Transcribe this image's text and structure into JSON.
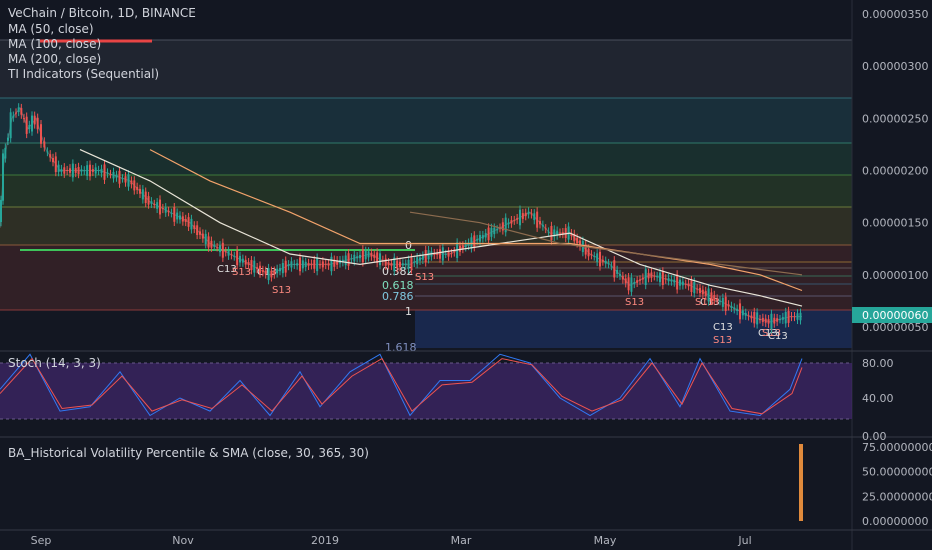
{
  "chart_title": "VeChain / Bitcoin, 1D, BINANCE",
  "indicators": [
    "MA (50, close)",
    "MA (100, close)",
    "MA (200, close)",
    "TI Indicators (Sequential)"
  ],
  "stoch_label": "Stoch (14, 3, 3)",
  "hv_label": "BA_Historical Volatility Percentile & SMA (close, 30, 365, 30)",
  "last_price_label": "0.00000060",
  "colors": {
    "background": "#131722",
    "up": "#26a69a",
    "down": "#ef5350",
    "ma50": "#e9e5d8",
    "ma100": "#f2a36b",
    "ma200": "#8d6c4f",
    "price_badge": "#26a69a",
    "stoch_k": "#3179f5",
    "stoch_d": "#ef5350",
    "stoch_band": "#4a2a7a",
    "hv_bar": "#e08a3c"
  },
  "fib_labels": [
    "0",
    "0.382",
    "0.618",
    "0.786",
    "1",
    "1.618"
  ],
  "sequential_labels": [
    "C13",
    "S13",
    "C13",
    "S13",
    "S13",
    "S13",
    "C13",
    "S13",
    "C13",
    "S13",
    "C13",
    "S13",
    "C13"
  ],
  "chart_data": [
    {
      "type": "candlestick",
      "title": "VeChain / Bitcoin, 1D, BINANCE",
      "x_ticks": [
        "Sep",
        "Nov",
        "2019",
        "Mar",
        "May",
        "Jul"
      ],
      "y_ticks": [
        "0.00000350",
        "0.00000300",
        "0.00000250",
        "0.00000200",
        "0.00000150",
        "0.00000100",
        "0.00000050"
      ],
      "ylim": [
        3e-07,
        3.6e-06
      ],
      "last_value": 6e-07,
      "price_path": [
        {
          "x": 0,
          "y": 1.45e-06
        },
        {
          "x": 4,
          "y": 2.1e-06
        },
        {
          "x": 12,
          "y": 2.5e-06
        },
        {
          "x": 20,
          "y": 2.6e-06
        },
        {
          "x": 28,
          "y": 2.4e-06
        },
        {
          "x": 36,
          "y": 2.5e-06
        },
        {
          "x": 46,
          "y": 2.2e-06
        },
        {
          "x": 60,
          "y": 2e-06
        },
        {
          "x": 80,
          "y": 2e-06
        },
        {
          "x": 100,
          "y": 2e-06
        },
        {
          "x": 130,
          "y": 1.9e-06
        },
        {
          "x": 150,
          "y": 1.7e-06
        },
        {
          "x": 170,
          "y": 1.6e-06
        },
        {
          "x": 190,
          "y": 1.5e-06
        },
        {
          "x": 210,
          "y": 1.3e-06
        },
        {
          "x": 230,
          "y": 1.2e-06
        },
        {
          "x": 250,
          "y": 1.1e-06
        },
        {
          "x": 270,
          "y": 1e-06
        },
        {
          "x": 290,
          "y": 1.1e-06
        },
        {
          "x": 310,
          "y": 1.1e-06
        },
        {
          "x": 330,
          "y": 1.1e-06
        },
        {
          "x": 350,
          "y": 1.15e-06
        },
        {
          "x": 370,
          "y": 1.2e-06
        },
        {
          "x": 390,
          "y": 1.1e-06
        },
        {
          "x": 410,
          "y": 1.1e-06
        },
        {
          "x": 430,
          "y": 1.2e-06
        },
        {
          "x": 450,
          "y": 1.2e-06
        },
        {
          "x": 470,
          "y": 1.3e-06
        },
        {
          "x": 490,
          "y": 1.4e-06
        },
        {
          "x": 510,
          "y": 1.5e-06
        },
        {
          "x": 530,
          "y": 1.6e-06
        },
        {
          "x": 550,
          "y": 1.4e-06
        },
        {
          "x": 570,
          "y": 1.4e-06
        },
        {
          "x": 590,
          "y": 1.2e-06
        },
        {
          "x": 610,
          "y": 1.1e-06
        },
        {
          "x": 630,
          "y": 9e-07
        },
        {
          "x": 650,
          "y": 1e-06
        },
        {
          "x": 670,
          "y": 9.5e-07
        },
        {
          "x": 690,
          "y": 9e-07
        },
        {
          "x": 710,
          "y": 8e-07
        },
        {
          "x": 730,
          "y": 7e-07
        },
        {
          "x": 750,
          "y": 6e-07
        },
        {
          "x": 770,
          "y": 5.5e-07
        },
        {
          "x": 790,
          "y": 6e-07
        },
        {
          "x": 802,
          "y": 6e-07
        }
      ],
      "series": [
        {
          "name": "MA (50, close)",
          "color": "#e9e5d8",
          "values": [
            {
              "x": 80,
              "y": 2.2e-06
            },
            {
              "x": 150,
              "y": 1.9e-06
            },
            {
              "x": 220,
              "y": 1.5e-06
            },
            {
              "x": 290,
              "y": 1.2e-06
            },
            {
              "x": 360,
              "y": 1.1e-06
            },
            {
              "x": 430,
              "y": 1.2e-06
            },
            {
              "x": 500,
              "y": 1.3e-06
            },
            {
              "x": 570,
              "y": 1.4e-06
            },
            {
              "x": 640,
              "y": 1.1e-06
            },
            {
              "x": 710,
              "y": 9e-07
            },
            {
              "x": 760,
              "y": 8e-07
            },
            {
              "x": 802,
              "y": 7e-07
            }
          ]
        },
        {
          "name": "MA (100, close)",
          "color": "#f2a36b",
          "values": [
            {
              "x": 150,
              "y": 2.2e-06
            },
            {
              "x": 210,
              "y": 1.9e-06
            },
            {
              "x": 290,
              "y": 1.6e-06
            },
            {
              "x": 360,
              "y": 1.3e-06
            },
            {
              "x": 430,
              "y": 1.3e-06
            },
            {
              "x": 500,
              "y": 1.3e-06
            },
            {
              "x": 570,
              "y": 1.3e-06
            },
            {
              "x": 640,
              "y": 1.2e-06
            },
            {
              "x": 710,
              "y": 1.1e-06
            },
            {
              "x": 760,
              "y": 1e-06
            },
            {
              "x": 802,
              "y": 8.5e-07
            }
          ]
        },
        {
          "name": "MA (200, close)",
          "color": "#8d6c4f",
          "values": [
            {
              "x": 410,
              "y": 1.6e-06
            },
            {
              "x": 480,
              "y": 1.5e-06
            },
            {
              "x": 560,
              "y": 1.3e-06
            },
            {
              "x": 640,
              "y": 1.2e-06
            },
            {
              "x": 720,
              "y": 1.1e-06
            },
            {
              "x": 802,
              "y": 1e-06
            }
          ]
        }
      ]
    },
    {
      "type": "line",
      "title": "Stoch (14, 3, 3)",
      "y_ticks": [
        "80.00",
        "40.00",
        "0.00"
      ],
      "ylim": [
        0,
        100
      ],
      "band": [
        20,
        80
      ],
      "series": [
        {
          "name": "%K",
          "values": [
            {
              "x": 0,
              "y": 50
            },
            {
              "x": 30,
              "y": 90
            },
            {
              "x": 60,
              "y": 25
            },
            {
              "x": 90,
              "y": 30
            },
            {
              "x": 120,
              "y": 70
            },
            {
              "x": 150,
              "y": 20
            },
            {
              "x": 180,
              "y": 40
            },
            {
              "x": 210,
              "y": 25
            },
            {
              "x": 240,
              "y": 60
            },
            {
              "x": 270,
              "y": 20
            },
            {
              "x": 300,
              "y": 70
            },
            {
              "x": 320,
              "y": 30
            },
            {
              "x": 350,
              "y": 70
            },
            {
              "x": 380,
              "y": 90
            },
            {
              "x": 410,
              "y": 20
            },
            {
              "x": 440,
              "y": 60
            },
            {
              "x": 470,
              "y": 60
            },
            {
              "x": 500,
              "y": 90
            },
            {
              "x": 530,
              "y": 80
            },
            {
              "x": 560,
              "y": 40
            },
            {
              "x": 590,
              "y": 20
            },
            {
              "x": 620,
              "y": 40
            },
            {
              "x": 650,
              "y": 85
            },
            {
              "x": 680,
              "y": 30
            },
            {
              "x": 700,
              "y": 85
            },
            {
              "x": 730,
              "y": 25
            },
            {
              "x": 760,
              "y": 20
            },
            {
              "x": 790,
              "y": 50
            },
            {
              "x": 802,
              "y": 85
            }
          ]
        },
        {
          "name": "%D",
          "values": [
            {
              "x": 0,
              "y": 45
            },
            {
              "x": 32,
              "y": 85
            },
            {
              "x": 62,
              "y": 28
            },
            {
              "x": 92,
              "y": 32
            },
            {
              "x": 122,
              "y": 65
            },
            {
              "x": 152,
              "y": 25
            },
            {
              "x": 182,
              "y": 38
            },
            {
              "x": 212,
              "y": 28
            },
            {
              "x": 242,
              "y": 55
            },
            {
              "x": 272,
              "y": 25
            },
            {
              "x": 302,
              "y": 65
            },
            {
              "x": 322,
              "y": 33
            },
            {
              "x": 352,
              "y": 65
            },
            {
              "x": 382,
              "y": 85
            },
            {
              "x": 412,
              "y": 25
            },
            {
              "x": 442,
              "y": 55
            },
            {
              "x": 472,
              "y": 58
            },
            {
              "x": 502,
              "y": 85
            },
            {
              "x": 532,
              "y": 78
            },
            {
              "x": 562,
              "y": 42
            },
            {
              "x": 592,
              "y": 25
            },
            {
              "x": 622,
              "y": 38
            },
            {
              "x": 652,
              "y": 80
            },
            {
              "x": 682,
              "y": 33
            },
            {
              "x": 702,
              "y": 80
            },
            {
              "x": 732,
              "y": 28
            },
            {
              "x": 762,
              "y": 22
            },
            {
              "x": 792,
              "y": 45
            },
            {
              "x": 802,
              "y": 75
            }
          ]
        }
      ]
    },
    {
      "type": "bar",
      "title": "BA_Historical Volatility Percentile & SMA (close, 30, 365, 30)",
      "y_ticks": [
        "75.00000000",
        "50.00000000",
        "25.00000000",
        "0.00000000"
      ],
      "ylim": [
        0,
        80
      ],
      "values": [
        {
          "x": 801,
          "y": 78
        }
      ]
    }
  ]
}
